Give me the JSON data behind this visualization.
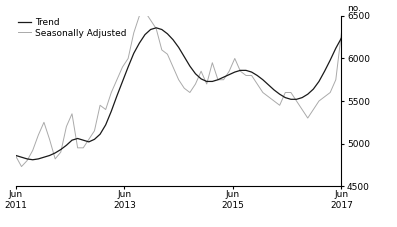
{
  "title": "",
  "ylabel": "no.",
  "ylim": [
    4500,
    6500
  ],
  "yticks": [
    4500,
    5000,
    5500,
    6000,
    6500
  ],
  "xtick_labels": [
    "Jun\n2011",
    "Jun\n2013",
    "Jun\n2015",
    "Jun\n2017"
  ],
  "legend_labels": [
    "Trend",
    "Seasonally Adjusted"
  ],
  "trend_color": "#1a1a1a",
  "seasonal_color": "#aaaaaa",
  "background_color": "#ffffff",
  "trend_linewidth": 0.9,
  "seasonal_linewidth": 0.7,
  "trend_data": [
    4860,
    4840,
    4820,
    4810,
    4820,
    4840,
    4860,
    4890,
    4930,
    4980,
    5040,
    5060,
    5040,
    5020,
    5050,
    5110,
    5220,
    5380,
    5560,
    5730,
    5900,
    6060,
    6180,
    6280,
    6340,
    6360,
    6340,
    6290,
    6220,
    6130,
    6020,
    5910,
    5820,
    5760,
    5730,
    5730,
    5750,
    5780,
    5810,
    5840,
    5860,
    5860,
    5840,
    5800,
    5750,
    5690,
    5630,
    5580,
    5540,
    5520,
    5520,
    5540,
    5580,
    5640,
    5730,
    5850,
    5980,
    6120,
    6240
  ],
  "seasonal_data": [
    4850,
    4730,
    4800,
    4920,
    5100,
    5250,
    5050,
    4820,
    4900,
    5200,
    5350,
    4950,
    4950,
    5050,
    5150,
    5450,
    5400,
    5600,
    5750,
    5900,
    6000,
    6300,
    6500,
    6550,
    6450,
    6350,
    6100,
    6050,
    5900,
    5750,
    5650,
    5600,
    5700,
    5850,
    5700,
    5950,
    5750,
    5750,
    5850,
    6000,
    5850,
    5800,
    5800,
    5700,
    5600,
    5550,
    5500,
    5450,
    5600,
    5600,
    5500,
    5400,
    5300,
    5400,
    5500,
    5550,
    5600,
    5750,
    6300
  ]
}
